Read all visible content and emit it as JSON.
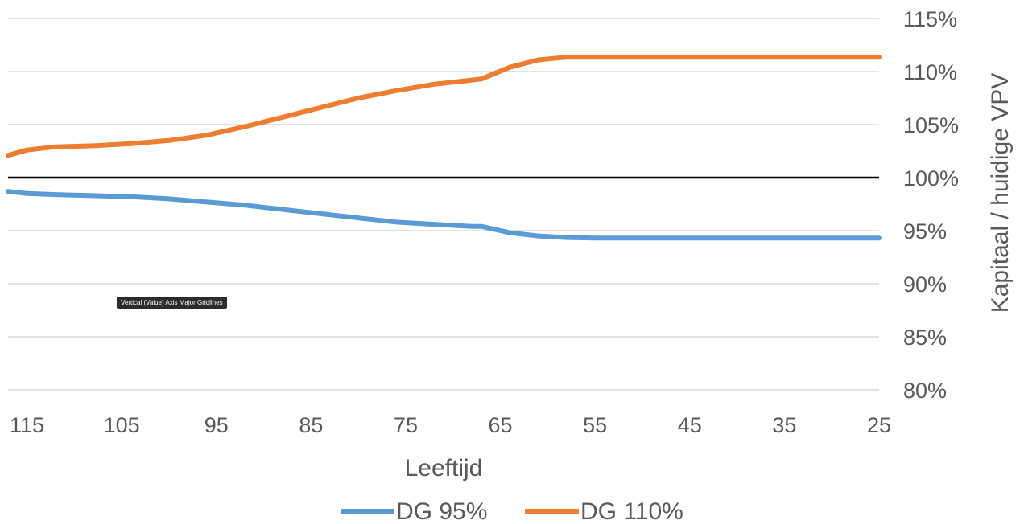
{
  "chart_data": {
    "type": "line",
    "xlabel": "Leeftijd",
    "ylabel": "Kapitaal / huidige VPV",
    "x_ticks": [
      115,
      105,
      95,
      85,
      75,
      65,
      55,
      45,
      35,
      25
    ],
    "y_ticks": [
      "80%",
      "85%",
      "90%",
      "95%",
      "100%",
      "105%",
      "110%",
      "115%"
    ],
    "xlim": [
      117,
      25
    ],
    "ylim": [
      80,
      115
    ],
    "x_reversed": true,
    "y_axis_position": "right",
    "grid": "horizontal",
    "legend_position": "bottom",
    "reference_line": {
      "y": 100,
      "color": "#000000"
    },
    "series": [
      {
        "name": "DG 95%",
        "color": "#5b9bd5",
        "points": [
          [
            117,
            98.7
          ],
          [
            115,
            98.5
          ],
          [
            112,
            98.4
          ],
          [
            108,
            98.3
          ],
          [
            104,
            98.2
          ],
          [
            100,
            98.0
          ],
          [
            96,
            97.7
          ],
          [
            92,
            97.4
          ],
          [
            88,
            97.0
          ],
          [
            84,
            96.6
          ],
          [
            80,
            96.2
          ],
          [
            76,
            95.8
          ],
          [
            72,
            95.6
          ],
          [
            68,
            95.4
          ],
          [
            67,
            95.4
          ],
          [
            64,
            94.8
          ],
          [
            61,
            94.5
          ],
          [
            58,
            94.35
          ],
          [
            55,
            94.3
          ],
          [
            25,
            94.3
          ]
        ]
      },
      {
        "name": "DG 110%",
        "color": "#ed7d31",
        "points": [
          [
            117,
            102.1
          ],
          [
            115,
            102.6
          ],
          [
            112,
            102.9
          ],
          [
            108,
            103.0
          ],
          [
            104,
            103.2
          ],
          [
            100,
            103.5
          ],
          [
            96,
            104.0
          ],
          [
            92,
            104.8
          ],
          [
            88,
            105.7
          ],
          [
            84,
            106.6
          ],
          [
            80,
            107.5
          ],
          [
            76,
            108.2
          ],
          [
            72,
            108.8
          ],
          [
            68,
            109.2
          ],
          [
            67,
            109.3
          ],
          [
            64,
            110.4
          ],
          [
            61,
            111.1
          ],
          [
            58,
            111.35
          ],
          [
            55,
            111.35
          ],
          [
            25,
            111.35
          ]
        ]
      }
    ]
  },
  "tooltip": {
    "text": "Vertical (Value) Axis Major Gridlines"
  }
}
